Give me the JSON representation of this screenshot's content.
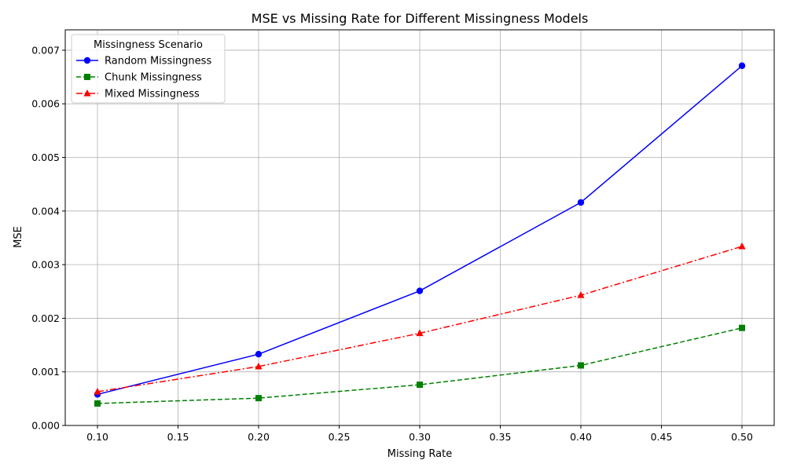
{
  "chart_data": {
    "type": "line",
    "title": "MSE vs Missing Rate for Different Missingness Models",
    "xlabel": "Missing Rate",
    "ylabel": "MSE",
    "x": [
      0.1,
      0.2,
      0.3,
      0.4,
      0.5
    ],
    "xlim": [
      0.08,
      0.52
    ],
    "ylim": [
      0,
      0.00738
    ],
    "x_ticks": [
      0.1,
      0.15,
      0.2,
      0.25,
      0.3,
      0.35,
      0.4,
      0.45,
      0.5
    ],
    "x_tick_labels": [
      "0.10",
      "0.15",
      "0.20",
      "0.25",
      "0.30",
      "0.35",
      "0.40",
      "0.45",
      "0.50"
    ],
    "y_ticks": [
      0,
      0.001,
      0.002,
      0.003,
      0.004,
      0.005,
      0.006,
      0.007
    ],
    "y_tick_labels": [
      "0.000",
      "0.001",
      "0.002",
      "0.003",
      "0.004",
      "0.005",
      "0.006",
      "0.007"
    ],
    "grid": true,
    "legend": {
      "title": "Missingness Scenario",
      "placement": "top-left"
    },
    "series": [
      {
        "name": "Random Missingness",
        "values": [
          0.00058,
          0.00133,
          0.00251,
          0.00416,
          0.00671
        ],
        "color": "#0000ff",
        "marker": "circle",
        "dash": "solid"
      },
      {
        "name": "Chunk Missingness",
        "values": [
          0.00041,
          0.00051,
          0.00076,
          0.00112,
          0.00182
        ],
        "color": "#008000",
        "marker": "square",
        "dash": "dashed"
      },
      {
        "name": "Mixed Missingness",
        "values": [
          0.00063,
          0.0011,
          0.00172,
          0.00243,
          0.00334
        ],
        "color": "#ff0000",
        "marker": "triangle",
        "dash": "dashdot"
      }
    ]
  }
}
